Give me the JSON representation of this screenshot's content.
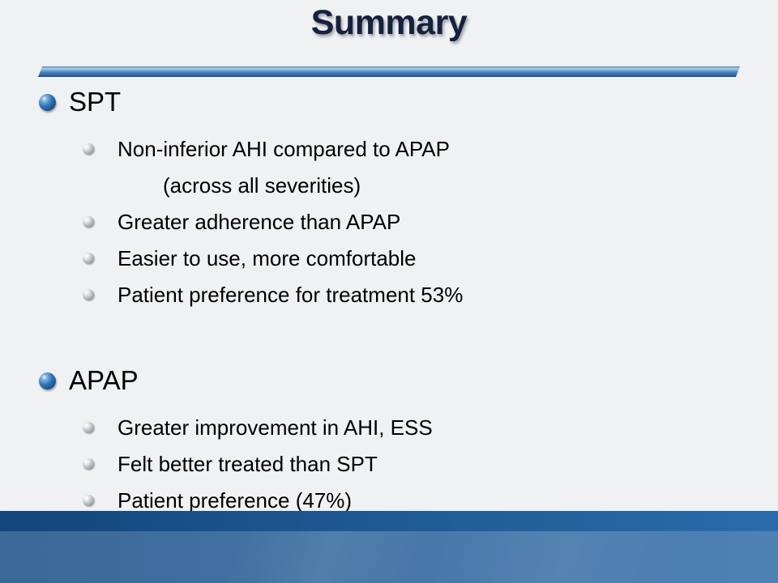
{
  "slide": {
    "title": "Summary",
    "sections": [
      {
        "heading": "SPT",
        "items": [
          {
            "text": "Non-inferior AHI compared to APAP",
            "continuation": "(across all severities)"
          },
          {
            "text": "Greater adherence than APAP"
          },
          {
            "text": "Easier to use, more comfortable"
          },
          {
            "text": "Patient preference for treatment 53%"
          }
        ]
      },
      {
        "heading": "APAP",
        "items": [
          {
            "text": "Greater improvement in AHI, ESS"
          },
          {
            "text": "Felt better treated than SPT"
          },
          {
            "text": "Patient preference (47%)"
          }
        ]
      }
    ],
    "colors": {
      "title_text": "#15213e",
      "body_text": "#000000",
      "background": "#f0f1f2",
      "divider_blue": "#4279b2",
      "divider_highlight": "#aed1ee",
      "footer_strip_left": "#12457b",
      "footer_strip_right": "#2a6cab",
      "footer_body_left": "#3a6897",
      "footer_body_right": "#4e82b4",
      "bullet_blue": "#2f74b8",
      "bullet_gray": "#a9b0b7"
    }
  }
}
